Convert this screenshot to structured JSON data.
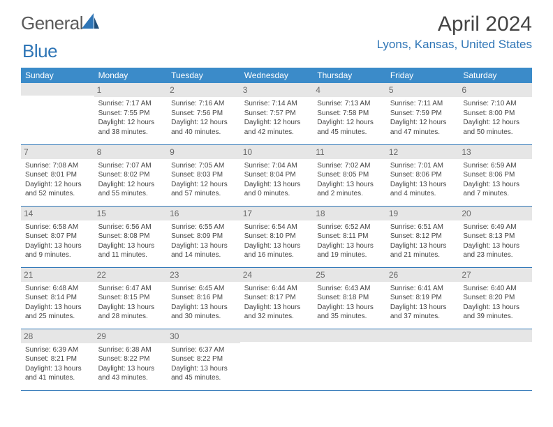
{
  "brand": {
    "part1": "General",
    "part2": "Blue"
  },
  "title": "April 2024",
  "location": "Lyons, Kansas, United States",
  "colors": {
    "header_bg": "#3b8bc9",
    "accent": "#2e75b6",
    "daynum_bg": "#e6e6e6",
    "text": "#444444",
    "logo_gray": "#5a5a5a"
  },
  "weekdays": [
    "Sunday",
    "Monday",
    "Tuesday",
    "Wednesday",
    "Thursday",
    "Friday",
    "Saturday"
  ],
  "weeks": [
    [
      {
        "day": "",
        "lines": [
          "",
          "",
          "",
          ""
        ]
      },
      {
        "day": "1",
        "lines": [
          "Sunrise: 7:17 AM",
          "Sunset: 7:55 PM",
          "Daylight: 12 hours",
          "and 38 minutes."
        ]
      },
      {
        "day": "2",
        "lines": [
          "Sunrise: 7:16 AM",
          "Sunset: 7:56 PM",
          "Daylight: 12 hours",
          "and 40 minutes."
        ]
      },
      {
        "day": "3",
        "lines": [
          "Sunrise: 7:14 AM",
          "Sunset: 7:57 PM",
          "Daylight: 12 hours",
          "and 42 minutes."
        ]
      },
      {
        "day": "4",
        "lines": [
          "Sunrise: 7:13 AM",
          "Sunset: 7:58 PM",
          "Daylight: 12 hours",
          "and 45 minutes."
        ]
      },
      {
        "day": "5",
        "lines": [
          "Sunrise: 7:11 AM",
          "Sunset: 7:59 PM",
          "Daylight: 12 hours",
          "and 47 minutes."
        ]
      },
      {
        "day": "6",
        "lines": [
          "Sunrise: 7:10 AM",
          "Sunset: 8:00 PM",
          "Daylight: 12 hours",
          "and 50 minutes."
        ]
      }
    ],
    [
      {
        "day": "7",
        "lines": [
          "Sunrise: 7:08 AM",
          "Sunset: 8:01 PM",
          "Daylight: 12 hours",
          "and 52 minutes."
        ]
      },
      {
        "day": "8",
        "lines": [
          "Sunrise: 7:07 AM",
          "Sunset: 8:02 PM",
          "Daylight: 12 hours",
          "and 55 minutes."
        ]
      },
      {
        "day": "9",
        "lines": [
          "Sunrise: 7:05 AM",
          "Sunset: 8:03 PM",
          "Daylight: 12 hours",
          "and 57 minutes."
        ]
      },
      {
        "day": "10",
        "lines": [
          "Sunrise: 7:04 AM",
          "Sunset: 8:04 PM",
          "Daylight: 13 hours",
          "and 0 minutes."
        ]
      },
      {
        "day": "11",
        "lines": [
          "Sunrise: 7:02 AM",
          "Sunset: 8:05 PM",
          "Daylight: 13 hours",
          "and 2 minutes."
        ]
      },
      {
        "day": "12",
        "lines": [
          "Sunrise: 7:01 AM",
          "Sunset: 8:06 PM",
          "Daylight: 13 hours",
          "and 4 minutes."
        ]
      },
      {
        "day": "13",
        "lines": [
          "Sunrise: 6:59 AM",
          "Sunset: 8:06 PM",
          "Daylight: 13 hours",
          "and 7 minutes."
        ]
      }
    ],
    [
      {
        "day": "14",
        "lines": [
          "Sunrise: 6:58 AM",
          "Sunset: 8:07 PM",
          "Daylight: 13 hours",
          "and 9 minutes."
        ]
      },
      {
        "day": "15",
        "lines": [
          "Sunrise: 6:56 AM",
          "Sunset: 8:08 PM",
          "Daylight: 13 hours",
          "and 11 minutes."
        ]
      },
      {
        "day": "16",
        "lines": [
          "Sunrise: 6:55 AM",
          "Sunset: 8:09 PM",
          "Daylight: 13 hours",
          "and 14 minutes."
        ]
      },
      {
        "day": "17",
        "lines": [
          "Sunrise: 6:54 AM",
          "Sunset: 8:10 PM",
          "Daylight: 13 hours",
          "and 16 minutes."
        ]
      },
      {
        "day": "18",
        "lines": [
          "Sunrise: 6:52 AM",
          "Sunset: 8:11 PM",
          "Daylight: 13 hours",
          "and 19 minutes."
        ]
      },
      {
        "day": "19",
        "lines": [
          "Sunrise: 6:51 AM",
          "Sunset: 8:12 PM",
          "Daylight: 13 hours",
          "and 21 minutes."
        ]
      },
      {
        "day": "20",
        "lines": [
          "Sunrise: 6:49 AM",
          "Sunset: 8:13 PM",
          "Daylight: 13 hours",
          "and 23 minutes."
        ]
      }
    ],
    [
      {
        "day": "21",
        "lines": [
          "Sunrise: 6:48 AM",
          "Sunset: 8:14 PM",
          "Daylight: 13 hours",
          "and 25 minutes."
        ]
      },
      {
        "day": "22",
        "lines": [
          "Sunrise: 6:47 AM",
          "Sunset: 8:15 PM",
          "Daylight: 13 hours",
          "and 28 minutes."
        ]
      },
      {
        "day": "23",
        "lines": [
          "Sunrise: 6:45 AM",
          "Sunset: 8:16 PM",
          "Daylight: 13 hours",
          "and 30 minutes."
        ]
      },
      {
        "day": "24",
        "lines": [
          "Sunrise: 6:44 AM",
          "Sunset: 8:17 PM",
          "Daylight: 13 hours",
          "and 32 minutes."
        ]
      },
      {
        "day": "25",
        "lines": [
          "Sunrise: 6:43 AM",
          "Sunset: 8:18 PM",
          "Daylight: 13 hours",
          "and 35 minutes."
        ]
      },
      {
        "day": "26",
        "lines": [
          "Sunrise: 6:41 AM",
          "Sunset: 8:19 PM",
          "Daylight: 13 hours",
          "and 37 minutes."
        ]
      },
      {
        "day": "27",
        "lines": [
          "Sunrise: 6:40 AM",
          "Sunset: 8:20 PM",
          "Daylight: 13 hours",
          "and 39 minutes."
        ]
      }
    ],
    [
      {
        "day": "28",
        "lines": [
          "Sunrise: 6:39 AM",
          "Sunset: 8:21 PM",
          "Daylight: 13 hours",
          "and 41 minutes."
        ]
      },
      {
        "day": "29",
        "lines": [
          "Sunrise: 6:38 AM",
          "Sunset: 8:22 PM",
          "Daylight: 13 hours",
          "and 43 minutes."
        ]
      },
      {
        "day": "30",
        "lines": [
          "Sunrise: 6:37 AM",
          "Sunset: 8:22 PM",
          "Daylight: 13 hours",
          "and 45 minutes."
        ]
      },
      {
        "day": "",
        "lines": [
          "",
          "",
          "",
          ""
        ]
      },
      {
        "day": "",
        "lines": [
          "",
          "",
          "",
          ""
        ]
      },
      {
        "day": "",
        "lines": [
          "",
          "",
          "",
          ""
        ]
      },
      {
        "day": "",
        "lines": [
          "",
          "",
          "",
          ""
        ]
      }
    ]
  ]
}
